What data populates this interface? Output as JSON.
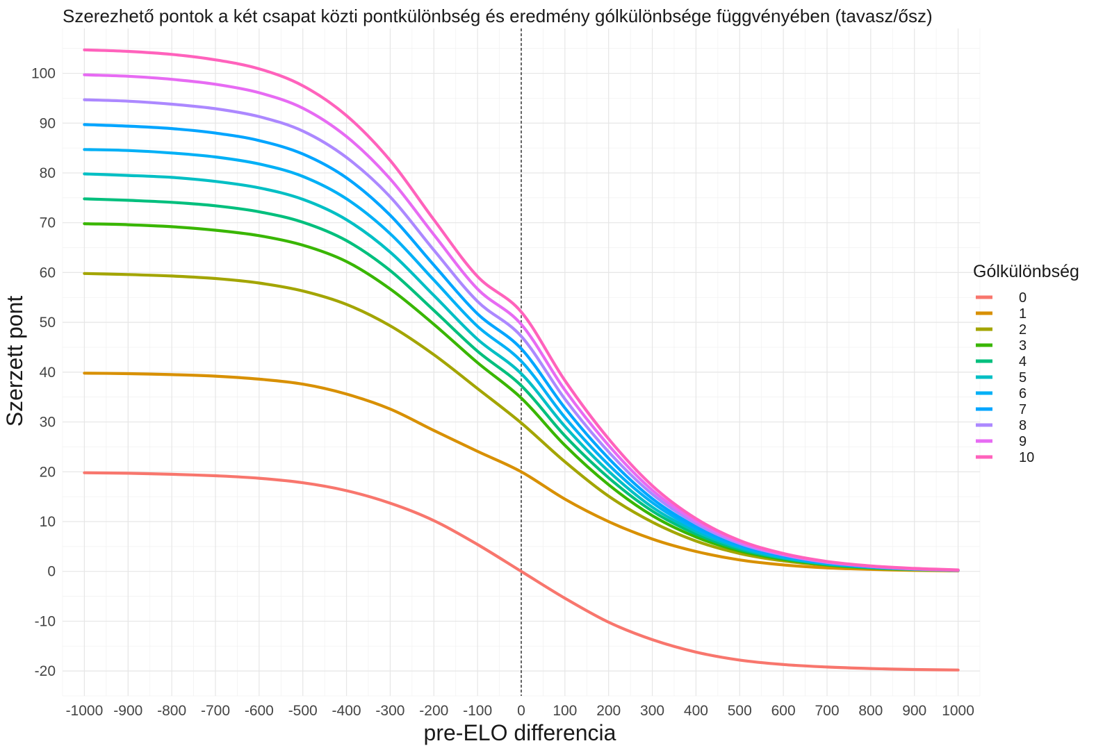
{
  "chart_data": {
    "type": "line",
    "title": "Szerezhető pontok a két csapat közti pontkülönbség és eredmény gólkülönbsége függvényében (tavasz/ősz)",
    "xlabel": "pre-ELO differencia",
    "ylabel": "Szerzett pont",
    "xlim": [
      -1050,
      1050
    ],
    "ylim": [
      -25,
      109
    ],
    "x_ticks": [
      -1000,
      -900,
      -800,
      -700,
      -600,
      -500,
      -400,
      -300,
      -200,
      -100,
      0,
      100,
      200,
      300,
      400,
      500,
      600,
      700,
      800,
      900,
      1000
    ],
    "y_ticks": [
      -20,
      -10,
      0,
      10,
      20,
      30,
      40,
      50,
      60,
      70,
      80,
      90,
      100
    ],
    "grid": true,
    "vline": {
      "x": 0,
      "style": "dashed"
    },
    "legend": {
      "title": "Gólkülönbség",
      "position": "right"
    },
    "x": [
      -1000,
      -900,
      -800,
      -700,
      -600,
      -500,
      -400,
      -300,
      -200,
      -100,
      0,
      100,
      200,
      300,
      400,
      500,
      600,
      700,
      800,
      900,
      1000
    ],
    "series": [
      {
        "name": "0",
        "color": "#F8766D",
        "values": [
          19.8,
          19.7,
          19.5,
          19.2,
          18.7,
          17.8,
          16.2,
          13.7,
          10.2,
          5.4,
          0.0,
          -5.4,
          -10.2,
          -13.7,
          -16.2,
          -17.8,
          -18.7,
          -19.2,
          -19.5,
          -19.7,
          -19.8
        ]
      },
      {
        "name": "1",
        "color": "#D89000",
        "values": [
          39.8,
          39.7,
          39.5,
          39.2,
          38.6,
          37.6,
          35.6,
          32.6,
          28.3,
          24.1,
          20.0,
          14.5,
          10.0,
          6.5,
          4.0,
          2.3,
          1.3,
          0.7,
          0.4,
          0.2,
          0.1
        ]
      },
      {
        "name": "2",
        "color": "#A3A500",
        "values": [
          59.8,
          59.6,
          59.3,
          58.8,
          57.9,
          56.3,
          53.6,
          49.3,
          43.5,
          36.7,
          29.8,
          22.0,
          15.1,
          9.9,
          6.1,
          3.6,
          2.1,
          1.2,
          0.6,
          0.3,
          0.2
        ]
      },
      {
        "name": "3",
        "color": "#39B600",
        "values": [
          69.8,
          69.6,
          69.2,
          68.5,
          67.4,
          65.5,
          62.2,
          56.7,
          49.6,
          41.9,
          34.8,
          25.3,
          17.4,
          11.2,
          6.9,
          4.1,
          2.4,
          1.3,
          0.7,
          0.4,
          0.2
        ]
      },
      {
        "name": "4",
        "color": "#00BF7D",
        "values": [
          74.8,
          74.5,
          74.1,
          73.4,
          72.2,
          70.1,
          66.4,
          60.4,
          52.4,
          44.2,
          37.3,
          27.2,
          18.8,
          12.1,
          7.5,
          4.4,
          2.6,
          1.4,
          0.8,
          0.4,
          0.2
        ]
      },
      {
        "name": "5",
        "color": "#00BFC4",
        "values": [
          79.8,
          79.5,
          79.1,
          78.3,
          77.0,
          74.7,
          70.6,
          64.1,
          55.4,
          46.6,
          39.7,
          29.1,
          20.1,
          12.9,
          8.0,
          4.7,
          2.7,
          1.5,
          0.8,
          0.4,
          0.2
        ]
      },
      {
        "name": "6",
        "color": "#00B0F6",
        "values": [
          84.7,
          84.5,
          84.0,
          83.2,
          81.8,
          79.3,
          74.8,
          67.8,
          58.5,
          49.2,
          42.2,
          30.9,
          21.4,
          13.8,
          8.5,
          5.0,
          2.9,
          1.6,
          0.9,
          0.5,
          0.2
        ]
      },
      {
        "name": "7",
        "color": "#00A5FF",
        "values": [
          89.7,
          89.4,
          88.9,
          88.0,
          86.5,
          83.8,
          79.0,
          71.5,
          61.5,
          51.7,
          44.7,
          32.8,
          22.7,
          14.6,
          9.0,
          5.3,
          3.1,
          1.7,
          0.9,
          0.5,
          0.2
        ]
      },
      {
        "name": "8",
        "color": "#AC88FF",
        "values": [
          94.7,
          94.4,
          93.8,
          92.9,
          91.3,
          88.4,
          83.1,
          75.2,
          64.5,
          54.2,
          47.2,
          34.6,
          24.0,
          15.5,
          9.6,
          5.6,
          3.3,
          1.8,
          1.0,
          0.5,
          0.2
        ]
      },
      {
        "name": "9",
        "color": "#E76BF3",
        "values": [
          99.7,
          99.4,
          98.8,
          97.8,
          96.1,
          93.0,
          87.3,
          78.8,
          67.6,
          56.7,
          49.6,
          36.4,
          25.3,
          16.3,
          10.1,
          5.9,
          3.4,
          1.9,
          1.0,
          0.5,
          0.3
        ]
      },
      {
        "name": "10",
        "color": "#FF62BC",
        "values": [
          104.7,
          104.4,
          103.8,
          102.7,
          100.9,
          97.5,
          91.5,
          82.5,
          70.6,
          59.2,
          52.1,
          38.3,
          26.6,
          17.2,
          10.6,
          6.2,
          3.6,
          2.0,
          1.1,
          0.6,
          0.3
        ]
      }
    ]
  }
}
